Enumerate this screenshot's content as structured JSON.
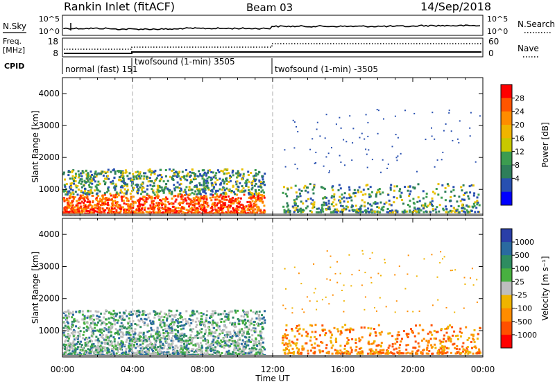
{
  "header": {
    "station": "Rankin Inlet (fitACF)",
    "beam": "Beam 03",
    "date": "14/Sep/2018"
  },
  "noise_panel": {
    "left_label": "N.Sky",
    "right_label": "N.Search",
    "left_ticks": [
      "10^5",
      "10^0"
    ],
    "right_ticks": [
      "10^5",
      "10^0"
    ]
  },
  "freq_panel": {
    "left_label_1": "Freq.",
    "left_label_2": "[MHz]",
    "right_label": "Nave",
    "left_ticks": [
      "18",
      "8"
    ],
    "right_ticks": [
      "60",
      "0"
    ]
  },
  "cpid": {
    "label": "CPID",
    "segments": [
      {
        "text": "normal (fast) 151",
        "start_hour": 0
      },
      {
        "text": "twofsound (1-min) 3505",
        "start_hour": 4
      },
      {
        "text": "twofsound (1-min) -3505",
        "start_hour": 12
      }
    ]
  },
  "time_axis": {
    "label": "Time UT",
    "ticks": [
      "00:00",
      "04:00",
      "08:00",
      "12:00",
      "16:00",
      "20:00",
      "00:00"
    ]
  },
  "chart_data": [
    {
      "type": "heatmap",
      "quantity": "Power",
      "ylabel": "Slant Range [km]",
      "xlabel": "Time UT",
      "xlim": [
        0,
        24
      ],
      "ylim": [
        180,
        4500
      ],
      "y_ticks": [
        1000,
        2000,
        3000,
        4000
      ],
      "colorbar": {
        "label": "Power [dB]",
        "ticks": [
          "28",
          "24",
          "20",
          "16",
          "12",
          "8",
          "4"
        ],
        "colors": [
          "#ff0000",
          "#ff5500",
          "#ff8c00",
          "#f0b400",
          "#c8c800",
          "#3c9c50",
          "#2e7e5a",
          "#2850b0",
          "#0000ff"
        ]
      }
    },
    {
      "type": "heatmap",
      "quantity": "Velocity",
      "ylabel": "Slant Range [km]",
      "xlabel": "Time UT",
      "xlim": [
        0,
        24
      ],
      "ylim": [
        180,
        4500
      ],
      "y_ticks": [
        1000,
        2000,
        3000,
        4000
      ],
      "colorbar": {
        "label": "Velocity [m s⁻¹]",
        "ticks": [
          "1000",
          "500",
          "100",
          "25",
          "-25",
          "-100",
          "-500",
          "-1000"
        ],
        "colors": [
          "#2a3fa8",
          "#2a6aa0",
          "#2e8c60",
          "#48b040",
          "#bebebe",
          "#f0b400",
          "#ff8c00",
          "#ff5000",
          "#ff0000"
        ]
      }
    }
  ]
}
